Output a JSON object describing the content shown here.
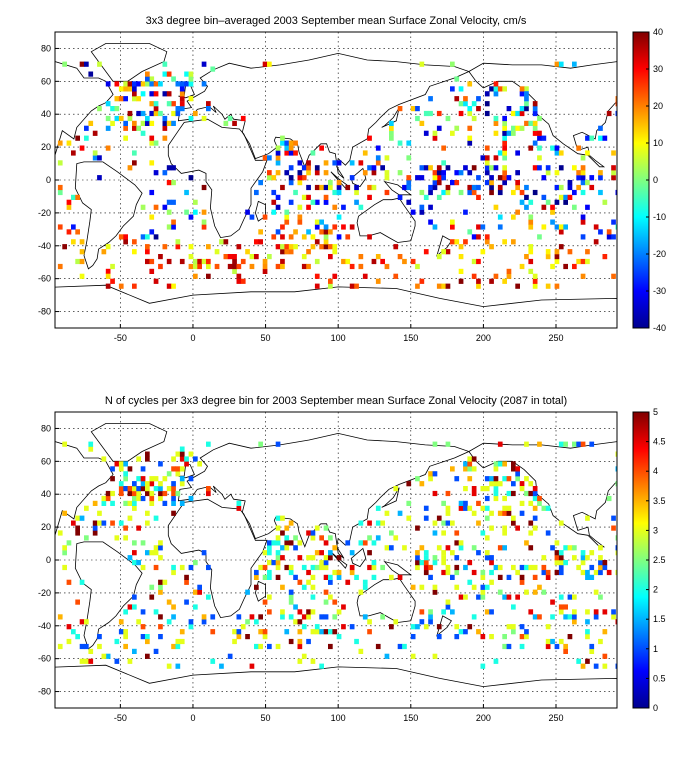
{
  "chart_data": [
    {
      "type": "heatmap",
      "title": "3x3 degree bin–averaged 2003 September mean Surface Zonal Velocity, cm/s",
      "xlim": [
        -95,
        292
      ],
      "ylim": [
        -90,
        90
      ],
      "xticks": [
        -50,
        0,
        50,
        100,
        150,
        200,
        250
      ],
      "yticks": [
        80,
        60,
        40,
        20,
        0,
        -20,
        -40,
        -60,
        -80
      ],
      "grid": true,
      "bin_size_deg": 3,
      "colorbar": {
        "min": -40,
        "max": 40,
        "ticks": [
          40,
          30,
          20,
          10,
          0,
          -10,
          -20,
          -30,
          -40
        ],
        "colormap": "jet"
      },
      "sample_bins": [
        {
          "lon": -66,
          "lat": 0,
          "value": -35
        },
        {
          "lon": -45,
          "lat": 55,
          "value": 15
        },
        {
          "lon": -30,
          "lat": 60,
          "value": 5
        },
        {
          "lon": -15,
          "lat": 45,
          "value": 25
        },
        {
          "lon": 10,
          "lat": 45,
          "value": 35
        },
        {
          "lon": 35,
          "lat": 38,
          "value": 30
        },
        {
          "lon": 65,
          "lat": 15,
          "value": 30
        },
        {
          "lon": 75,
          "lat": 0,
          "value": 25
        },
        {
          "lon": 85,
          "lat": -15,
          "value": -30
        },
        {
          "lon": 100,
          "lat": -5,
          "value": -35
        },
        {
          "lon": 170,
          "lat": 0,
          "value": 30
        },
        {
          "lon": 190,
          "lat": 3,
          "value": -35
        },
        {
          "lon": 220,
          "lat": 40,
          "value": 10
        },
        {
          "lon": 230,
          "lat": 55,
          "value": 5
        },
        {
          "lon": 240,
          "lat": 0,
          "value": -30
        },
        {
          "lon": 270,
          "lat": 15,
          "value": 10
        },
        {
          "lon": 30,
          "lat": -40,
          "value": 35
        },
        {
          "lon": 60,
          "lat": -50,
          "value": 35
        },
        {
          "lon": 175,
          "lat": -45,
          "value": 35
        },
        {
          "lon": -60,
          "lat": -55,
          "value": 30
        }
      ]
    },
    {
      "type": "heatmap",
      "title": "N of cycles per 3x3 degree bin for 2003 September mean Surface Zonal Velocity (2087 in total)",
      "xlim": [
        -95,
        292
      ],
      "ylim": [
        -90,
        90
      ],
      "xticks": [
        -50,
        0,
        50,
        100,
        150,
        200,
        250
      ],
      "yticks": [
        80,
        60,
        40,
        20,
        0,
        -20,
        -40,
        -60,
        -80
      ],
      "grid": true,
      "bin_size_deg": 3,
      "total_cycles": 2087,
      "colorbar": {
        "min": 0,
        "max": 5,
        "ticks": [
          5,
          4.5,
          4,
          3.5,
          3,
          2.5,
          2,
          1.5,
          1,
          0.5,
          0
        ],
        "colormap": "jet"
      },
      "sample_bins": [
        {
          "lon": -45,
          "lat": 55,
          "value": 5
        },
        {
          "lon": -30,
          "lat": 45,
          "value": 4.5
        },
        {
          "lon": -15,
          "lat": 55,
          "value": 4
        },
        {
          "lon": 60,
          "lat": 15,
          "value": 5
        },
        {
          "lon": 65,
          "lat": 10,
          "value": 5
        },
        {
          "lon": 80,
          "lat": 15,
          "value": 4.5
        },
        {
          "lon": 220,
          "lat": 55,
          "value": 5
        },
        {
          "lon": 225,
          "lat": 45,
          "value": 4.5
        },
        {
          "lon": 200,
          "lat": 30,
          "value": 3
        },
        {
          "lon": 160,
          "lat": -40,
          "value": 3
        },
        {
          "lon": 30,
          "lat": -35,
          "value": 1
        },
        {
          "lon": -60,
          "lat": -60,
          "value": 1.5
        }
      ]
    }
  ]
}
